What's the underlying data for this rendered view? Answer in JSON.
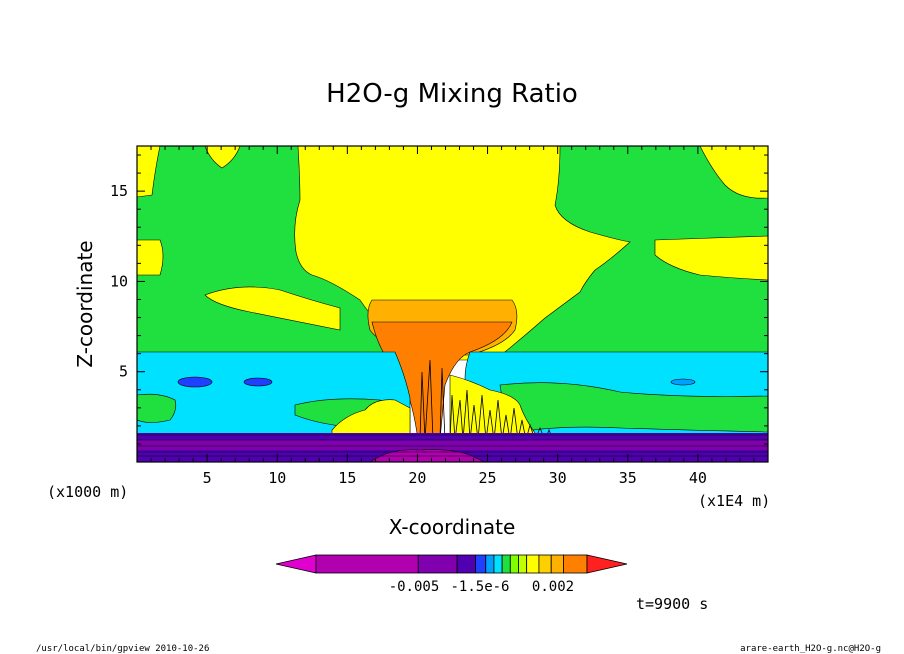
{
  "chart_data": {
    "type": "heatmap",
    "title": "H2O-g Mixing Ratio",
    "xlabel": "X-coordinate",
    "ylabel": "Z-coordinate",
    "x_unit_left": "(x1000 m)",
    "x_unit_right": "(x1E4 m)",
    "xlim": [
      0,
      45
    ],
    "ylim": [
      0,
      17.5
    ],
    "x_ticks": [
      "5",
      "10",
      "15",
      "20",
      "25",
      "30",
      "35",
      "40"
    ],
    "y_ticks": [
      "5",
      "10",
      "15"
    ],
    "colorbar_labels": [
      "-0.005",
      "-1.5e-6",
      "0.002"
    ],
    "colorbar_colors": [
      "#e000d0",
      "#b000b0",
      "#8000b0",
      "#5000b0",
      "#2040ff",
      "#00a0ff",
      "#00e0ff",
      "#20e040",
      "#80ff00",
      "#c0ff00",
      "#ffff00",
      "#ffd000",
      "#ffb000",
      "#ff8000",
      "#ff2020"
    ],
    "time_label": "t=9900 s",
    "footer_left": "/usr/local/bin/gpview  2010-10-26",
    "footer_right": "arare-earth_H2O-g.nc@H2O-g"
  }
}
